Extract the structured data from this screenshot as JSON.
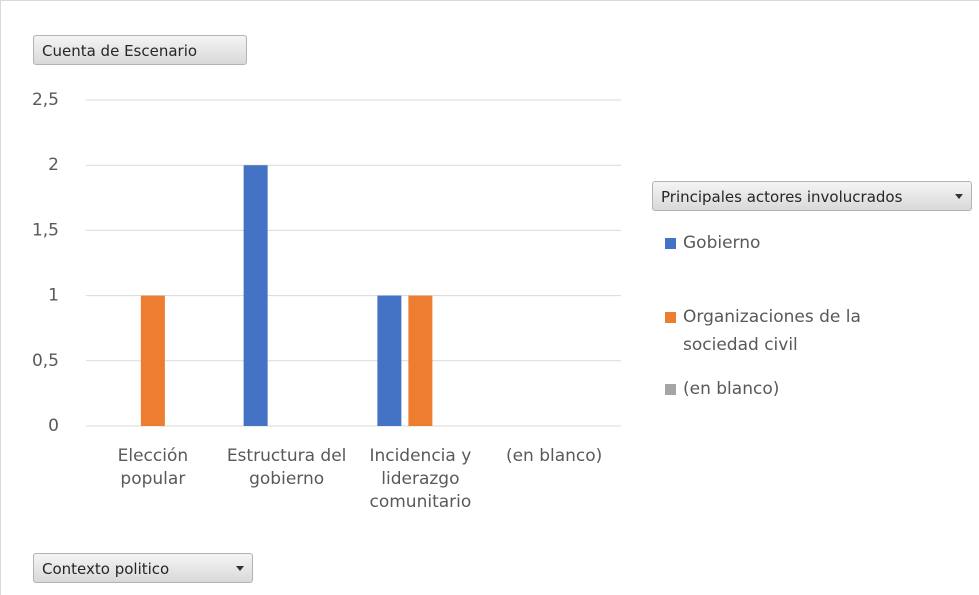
{
  "chart_data": {
    "type": "bar",
    "value_field": "Cuenta de Escenario",
    "category_field": "Contexto politico",
    "legend_title": "Principales actores involucrados",
    "categories": [
      "Elección popular",
      "Estructura del gobierno",
      "Incidencia y liderazgo comunitario",
      "(en blanco)"
    ],
    "series": [
      {
        "name": "Gobierno",
        "color": "#4472c4",
        "values": [
          null,
          2,
          1,
          null
        ]
      },
      {
        "name": "Organizaciones de la sociedad civil",
        "color": "#ed7d31",
        "values": [
          1,
          null,
          1,
          null
        ]
      },
      {
        "name": "(en blanco)",
        "color": "#a5a5a5",
        "values": [
          null,
          null,
          null,
          null
        ]
      }
    ],
    "ylim": [
      0,
      2.5
    ],
    "yticks": [
      0,
      {
        "value": 0.5,
        "label": "0,5"
      },
      1,
      {
        "value": 1.5,
        "label": "1,5"
      },
      2,
      {
        "value": 2.5,
        "label": "2,5"
      }
    ],
    "grid": true,
    "legend": "right"
  }
}
